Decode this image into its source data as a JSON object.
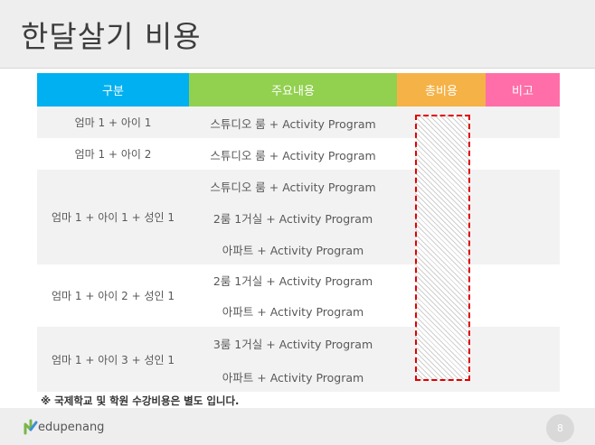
{
  "title": "한달살기 비용",
  "colors": {
    "hdr_category": "#00b0f0",
    "hdr_content": "#92d050",
    "hdr_total": "#f5b247",
    "hdr_note": "#ff6ea8",
    "highlight_border": "#e00000"
  },
  "table": {
    "headers": {
      "category": "구분",
      "content": "주요내용",
      "total": "총비용",
      "note": "비고"
    },
    "rows": [
      {
        "category": "엄마 1 + 아이 1",
        "items": [
          "스튜디오 룸 + Activity Program"
        ]
      },
      {
        "category": "엄마 1 + 아이 2",
        "items": [
          "스튜디오 룸 + Activity Program"
        ]
      },
      {
        "category": "엄마 1 + 아이 1 + 성인 1",
        "items": [
          "스튜디오 룸 + Activity Program",
          "2룸  1거실  + Activity Program",
          "아파트 + Activity Program"
        ]
      },
      {
        "category": "엄마 1 + 아이 2 + 성인 1",
        "items": [
          "2룸  1거실  + Activity Program",
          "아파트 + Activity Program"
        ]
      },
      {
        "category": "엄마 1 + 아이 3 + 성인 1",
        "items": [
          "3룸  1거실  + Activity Program",
          "아파트 + Activity Program"
        ]
      }
    ]
  },
  "footnote": "※ 국제학교 및 학원 수강비용은 별도 입니다.",
  "footer": {
    "logo_text": "edupenang",
    "logo_icon": "edupenang-logo-icon",
    "page_number": "8"
  }
}
